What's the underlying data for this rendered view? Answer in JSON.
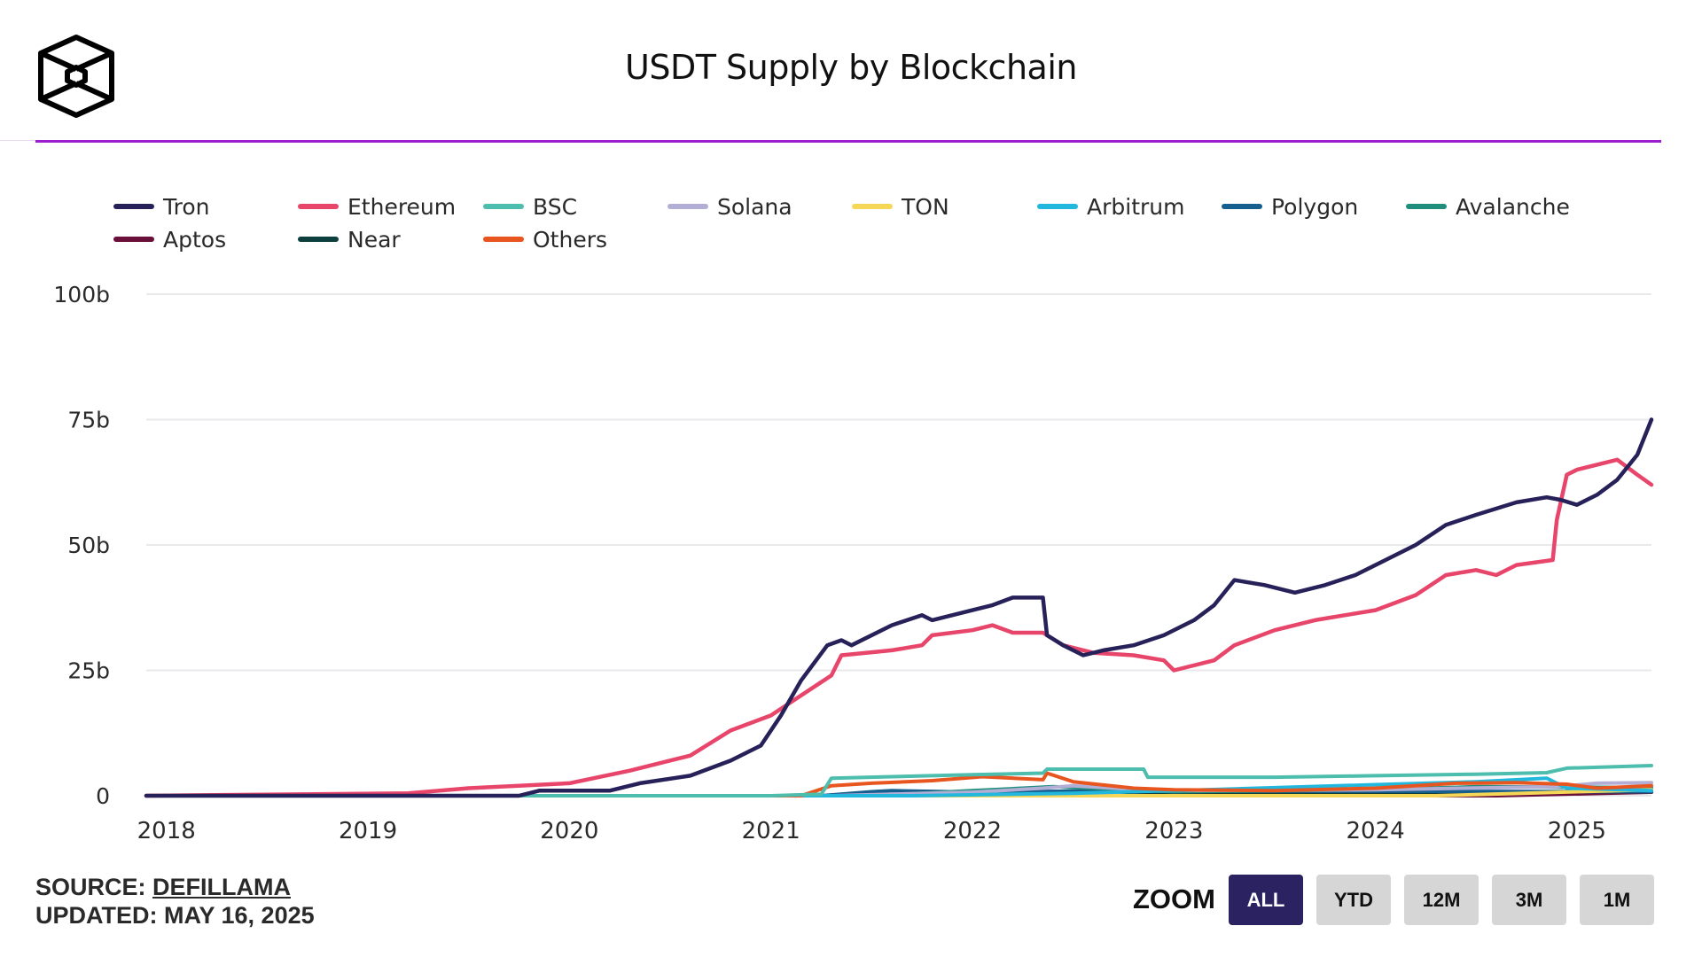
{
  "header": {
    "logo": "cube-logo-icon",
    "title": "USDT Supply by Blockchain"
  },
  "footer": {
    "source_label": "SOURCE:",
    "source_link": "DEFILLAMA",
    "updated": "UPDATED: MAY 16, 2025"
  },
  "zoom": {
    "label": "ZOOM",
    "buttons": [
      {
        "label": "ALL",
        "active": true
      },
      {
        "label": "YTD",
        "active": false
      },
      {
        "label": "12M",
        "active": false
      },
      {
        "label": "3M",
        "active": false
      },
      {
        "label": "1M",
        "active": false
      }
    ]
  },
  "chart_data": {
    "type": "line",
    "title": "USDT Supply by Blockchain",
    "xlabel": "",
    "ylabel": "",
    "xlim": [
      2017.9,
      2025.37
    ],
    "ylim": [
      0,
      100
    ],
    "y_unit": "b (billions USD)",
    "y_ticks": [
      0,
      25,
      50,
      75,
      100
    ],
    "y_tick_labels": [
      "0",
      "25b",
      "50b",
      "75b",
      "100b"
    ],
    "x_ticks": [
      2018,
      2019,
      2020,
      2021,
      2022,
      2023,
      2024,
      2025
    ],
    "x_tick_labels": [
      "2018",
      "2019",
      "2020",
      "2021",
      "2022",
      "2023",
      "2024",
      "2025"
    ],
    "grid": true,
    "legend_position": "top-left",
    "series": [
      {
        "name": "Tron",
        "color": "#27215a",
        "x": [
          2017.9,
          2019.75,
          2019.85,
          2020.2,
          2020.35,
          2020.6,
          2020.8,
          2020.95,
          2021.05,
          2021.15,
          2021.28,
          2021.35,
          2021.4,
          2021.6,
          2021.75,
          2021.8,
          2022.0,
          2022.1,
          2022.2,
          2022.35,
          2022.37,
          2022.45,
          2022.55,
          2022.65,
          2022.8,
          2022.95,
          2023.1,
          2023.2,
          2023.3,
          2023.45,
          2023.6,
          2023.75,
          2023.9,
          2024.05,
          2024.2,
          2024.35,
          2024.5,
          2024.7,
          2024.85,
          2024.92,
          2025.0,
          2025.1,
          2025.2,
          2025.3,
          2025.37
        ],
        "values": [
          0,
          0,
          1,
          1,
          2.5,
          4,
          7,
          10,
          16,
          23,
          30,
          31,
          30,
          34,
          36,
          35,
          37,
          38,
          39.5,
          39.5,
          32,
          30,
          28,
          29,
          30,
          32,
          35,
          38,
          43,
          42,
          40.5,
          42,
          44,
          47,
          50,
          54,
          56,
          58.5,
          59.5,
          59,
          58,
          60,
          63,
          68,
          75
        ]
      },
      {
        "name": "Ethereum",
        "color": "#e8456b",
        "x": [
          2017.9,
          2019.2,
          2019.5,
          2019.75,
          2020.0,
          2020.3,
          2020.6,
          2020.8,
          2021.0,
          2021.15,
          2021.3,
          2021.35,
          2021.6,
          2021.75,
          2021.8,
          2022.0,
          2022.1,
          2022.2,
          2022.35,
          2022.45,
          2022.6,
          2022.8,
          2022.95,
          2023.0,
          2023.2,
          2023.3,
          2023.5,
          2023.7,
          2023.85,
          2024.0,
          2024.2,
          2024.35,
          2024.5,
          2024.6,
          2024.7,
          2024.88,
          2024.9,
          2024.95,
          2025.0,
          2025.1,
          2025.2,
          2025.3,
          2025.37
        ],
        "values": [
          0,
          0.5,
          1.5,
          2,
          2.5,
          5,
          8,
          13,
          16,
          20,
          24,
          28,
          29,
          30,
          32,
          33,
          34,
          32.5,
          32.5,
          30,
          28.5,
          28,
          27,
          25,
          27,
          30,
          33,
          35,
          36,
          37,
          40,
          44,
          45,
          44,
          46,
          47,
          55,
          64,
          65,
          66,
          67,
          64,
          62
        ]
      },
      {
        "name": "BSC",
        "color": "#4dbdae",
        "x": [
          2017.9,
          2021.0,
          2021.25,
          2021.3,
          2021.6,
          2022.0,
          2022.35,
          2022.37,
          2022.85,
          2022.87,
          2023.5,
          2024.0,
          2024.5,
          2024.85,
          2024.95,
          2025.37
        ],
        "values": [
          0,
          0,
          0.3,
          3.5,
          3.8,
          4.2,
          4.5,
          5.3,
          5.3,
          3.7,
          3.7,
          4.0,
          4.3,
          4.6,
          5.5,
          6
        ]
      },
      {
        "name": "Solana",
        "color": "#b3aed6",
        "x": [
          2017.9,
          2021.3,
          2022.0,
          2022.35,
          2022.5,
          2022.9,
          2024.0,
          2024.9,
          2025.1,
          2025.37
        ],
        "values": [
          0,
          0,
          0.7,
          1.5,
          2.0,
          1.0,
          1.2,
          1.8,
          2.5,
          2.6
        ]
      },
      {
        "name": "TON",
        "color": "#f5d657",
        "x": [
          2017.9,
          2024.3,
          2025.0,
          2025.37
        ],
        "values": [
          0,
          0,
          0.8,
          1.2
        ]
      },
      {
        "name": "Arbitrum",
        "color": "#22b8dd",
        "x": [
          2017.9,
          2021.7,
          2022.5,
          2023.0,
          2024.0,
          2024.5,
          2024.85,
          2024.95,
          2025.37
        ],
        "values": [
          0,
          0,
          0.5,
          1.0,
          2.2,
          2.8,
          3.5,
          1.5,
          1.0
        ]
      },
      {
        "name": "Polygon",
        "color": "#155e8e",
        "x": [
          2017.9,
          2021.25,
          2021.5,
          2021.6,
          2022.0,
          2022.5,
          2023.0,
          2024.0,
          2025.37
        ],
        "values": [
          0,
          0,
          0.8,
          1.0,
          0.7,
          0.9,
          0.9,
          0.9,
          0.8
        ]
      },
      {
        "name": "Avalanche",
        "color": "#1f8e7c",
        "x": [
          2017.9,
          2021.5,
          2022.0,
          2022.4,
          2023.0,
          2024.0,
          2024.5,
          2025.37
        ],
        "values": [
          0,
          0,
          1.0,
          1.8,
          0.8,
          1.2,
          1.8,
          1.6
        ]
      },
      {
        "name": "Aptos",
        "color": "#6a0f3a",
        "x": [
          2017.9,
          2024.6,
          2025.37
        ],
        "values": [
          0,
          0,
          0.7
        ]
      },
      {
        "name": "Near",
        "color": "#0e3f3f",
        "x": [
          2017.9,
          2022.7,
          2023.0,
          2025.37
        ],
        "values": [
          0,
          0,
          0.4,
          0.7
        ]
      },
      {
        "name": "Others",
        "color": "#e8551e",
        "x": [
          2017.9,
          2021.15,
          2021.3,
          2021.5,
          2021.8,
          2022.05,
          2022.35,
          2022.37,
          2022.5,
          2022.8,
          2023.0,
          2023.5,
          2024.0,
          2024.4,
          2024.7,
          2024.95,
          2025.1,
          2025.37
        ],
        "values": [
          0,
          0,
          2.0,
          2.5,
          3.0,
          3.8,
          3.2,
          4.5,
          2.8,
          1.5,
          1.2,
          1.0,
          1.5,
          2.5,
          2.6,
          2.3,
          1.5,
          2.0
        ]
      }
    ]
  }
}
